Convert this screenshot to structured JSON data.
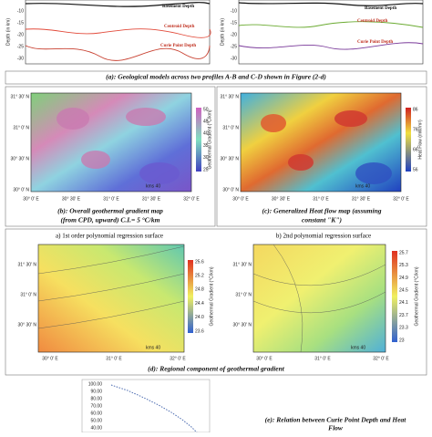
{
  "panel_a": {
    "y_label": "Depth (in km)",
    "yticks": [
      "-10",
      "-15",
      "-20",
      "-25",
      "-30"
    ],
    "left_labels": [
      "Basement Depth",
      "Centroid Depth",
      "Curie Point Depth"
    ],
    "right_labels": [
      "Basement Depth",
      "Centroid Depth",
      "Curie Point Depth"
    ],
    "caption": "(a): Geological models across two profiles A-B and C-D shown in Figure (2-d)"
  },
  "panel_b": {
    "lat": [
      "31° 30' N",
      "31° 0' N",
      "30° 30' N",
      "30° 0' N"
    ],
    "lon": [
      "30° 0' E",
      "30° 30' E",
      "31° 0' E",
      "31° 30' E",
      "32° 0' E"
    ],
    "colorbar_title": "Geothermal Gradient (°C/km)",
    "colorbar_ticks": [
      "50",
      "45",
      "40",
      "35",
      "30",
      "25"
    ],
    "scale": "kms 40",
    "caption": [
      "(b): Overall geothermal gradient map",
      "(from CPD, upward) C.I.= 5 °C/km"
    ]
  },
  "panel_c": {
    "lat": [
      "31° 30' N",
      "31° 0' N",
      "30° 30' N",
      "30° 0' N"
    ],
    "lon": [
      "30° 0' E",
      "30° 30' E",
      "31° 0' E",
      "31° 30' E",
      "32° 0' E"
    ],
    "colorbar_title": "Heat Flow (mW/m²)",
    "colorbar_ticks": [
      "86",
      "76",
      "66",
      "56"
    ],
    "scale": "kms 40",
    "caption": [
      "(c): Generalized Heat flow map (assuming",
      "constant \"K\")"
    ]
  },
  "panel_d": {
    "left_title": "a) 1st order polynomial regression surface",
    "right_title": "b) 2nd polynomial regression surface",
    "lat": [
      "31° 30' N",
      "31° 0' N",
      "30° 30' N"
    ],
    "lon": [
      "30° 0' E",
      "31° 0' E",
      "32° 0' E"
    ],
    "left_colorbar_title": "Geothermal Gradient (°C/km)",
    "left_colorbar_ticks": [
      "25.6",
      "25.2",
      "24.8",
      "24.4",
      "24.0",
      "23.6"
    ],
    "right_colorbar_title": "Geothermal Gradient (°C/km)",
    "right_colorbar_ticks": [
      "25.7",
      "25.3",
      "24.9",
      "24.5",
      "24.1",
      "23.7",
      "23.3",
      "23"
    ],
    "scale": "kms 40",
    "caption": "(d): Regional component of geothermal gradient"
  },
  "panel_e": {
    "yticks": [
      "100.00",
      "90.00",
      "80.00",
      "70.00",
      "60.00",
      "50.00",
      "40.00"
    ],
    "caption": [
      "(e): Relation between Curie Point Depth and Heat",
      "Flow"
    ]
  }
}
